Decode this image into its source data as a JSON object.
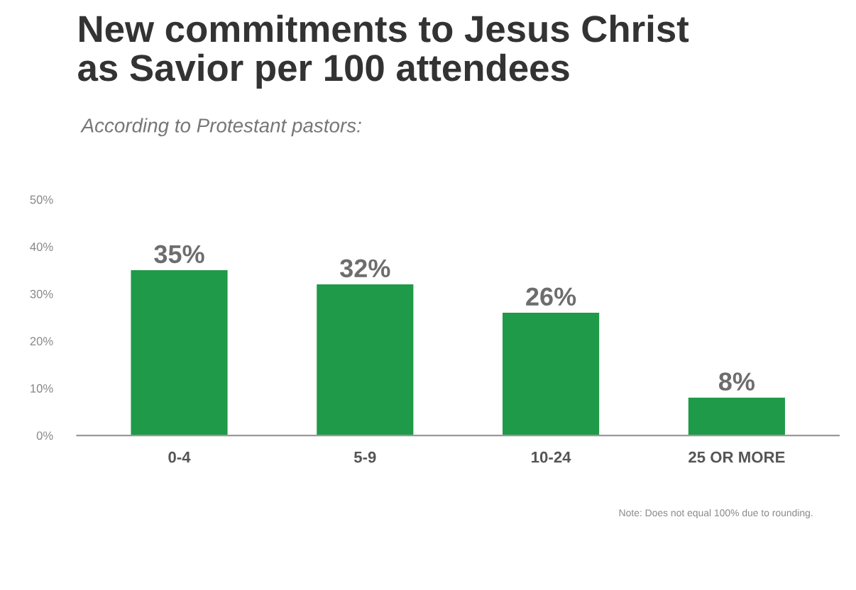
{
  "chart_data": {
    "type": "bar",
    "title": "New commitments to Jesus Christ\nas Savior per 100 attendees",
    "subtitle": "According to Protestant pastors:",
    "categories": [
      "0-4",
      "5-9",
      "10-24",
      "25 OR MORE"
    ],
    "values": [
      35,
      32,
      26,
      8
    ],
    "color": "#1e9a48",
    "value_labels": [
      "35%",
      "32%",
      "26%",
      "8%"
    ],
    "ylim": [
      0,
      50
    ],
    "yticks": [
      {
        "value": 0,
        "label": "0%"
      },
      {
        "value": 10,
        "label": "10%"
      },
      {
        "value": 20,
        "label": "20%"
      },
      {
        "value": 30,
        "label": "30%"
      },
      {
        "value": 40,
        "label": "40%"
      },
      {
        "value": 50,
        "label": "50%"
      }
    ],
    "grid": false,
    "annotations": [
      "Note: Does not equal 100% due to rounding."
    ]
  }
}
